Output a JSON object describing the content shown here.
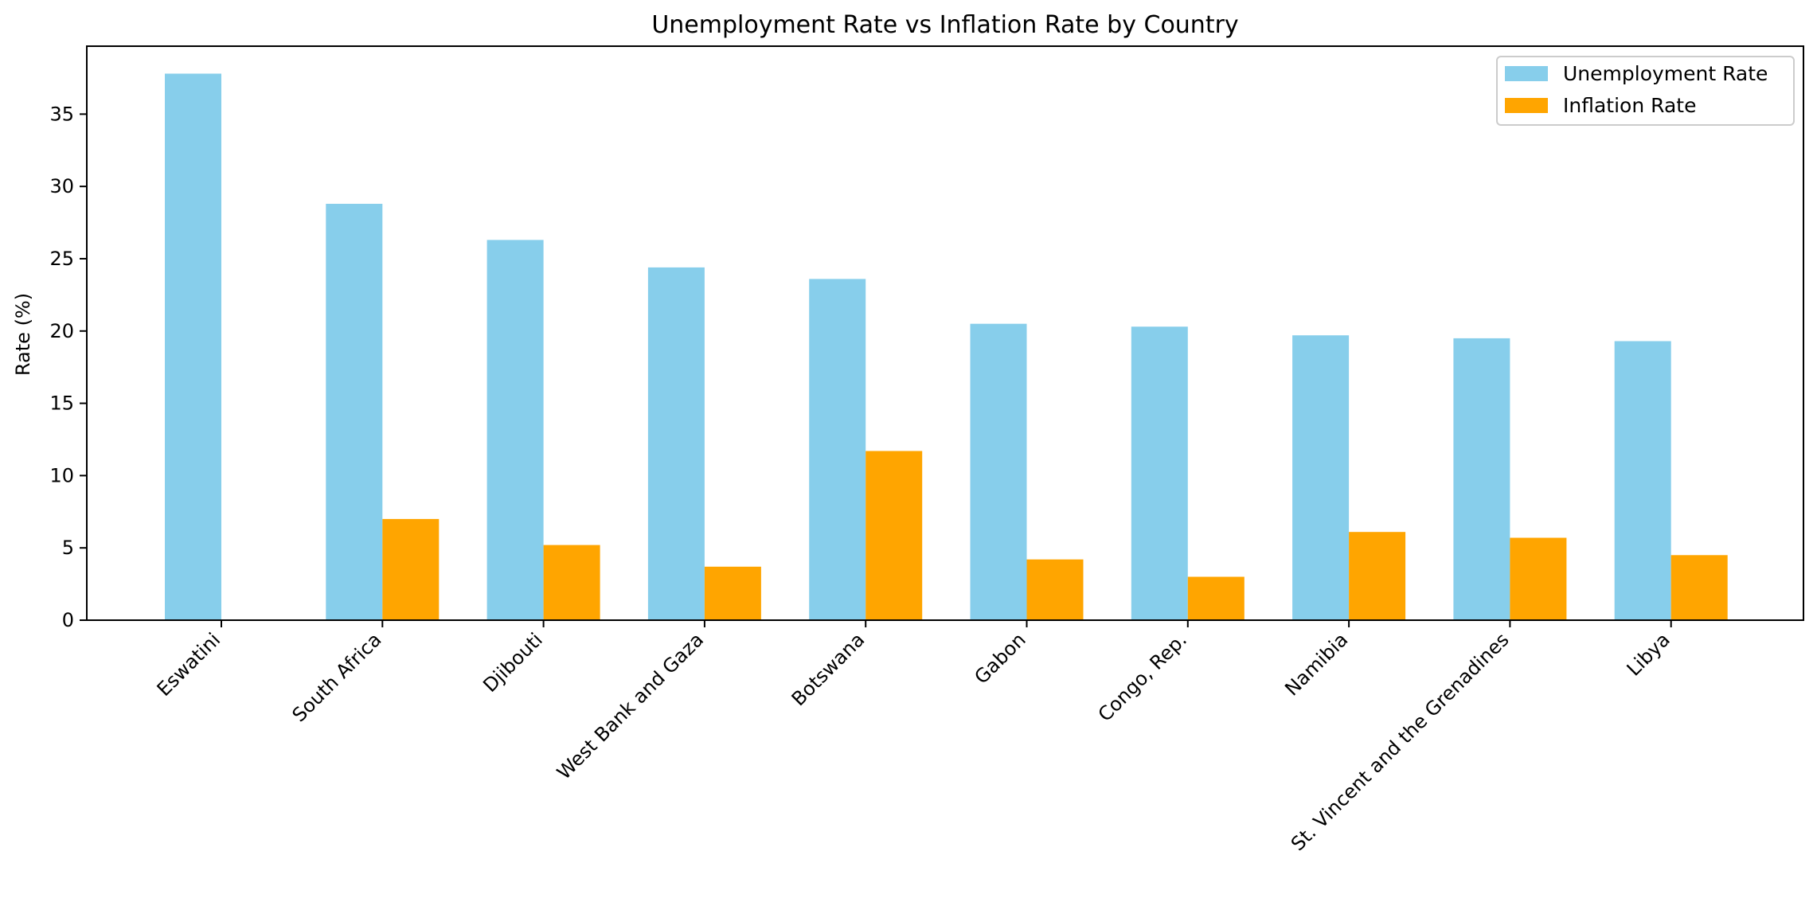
{
  "chart_data": {
    "type": "bar",
    "title": "Unemployment Rate vs Inflation Rate by Country",
    "xlabel": "",
    "ylabel": "Rate (%)",
    "ylim": [
      0,
      39.7
    ],
    "yticks": [
      0,
      5,
      10,
      15,
      20,
      25,
      30,
      35
    ],
    "grid": false,
    "legend_position": "top-right",
    "categories": [
      "Eswatini",
      "South Africa",
      "Djibouti",
      "West Bank and Gaza",
      "Botswana",
      "Gabon",
      "Congo, Rep.",
      "Namibia",
      "St. Vincent and the Grenadines",
      "Libya"
    ],
    "series": [
      {
        "name": "Unemployment Rate",
        "color": "#87CEEB",
        "values": [
          37.8,
          28.8,
          26.3,
          24.4,
          23.6,
          20.5,
          20.3,
          19.7,
          19.5,
          19.3
        ]
      },
      {
        "name": "Inflation Rate",
        "color": "#FFA500",
        "values": [
          null,
          7.0,
          5.2,
          3.7,
          11.7,
          4.2,
          3.0,
          6.1,
          5.7,
          4.5
        ]
      }
    ]
  }
}
